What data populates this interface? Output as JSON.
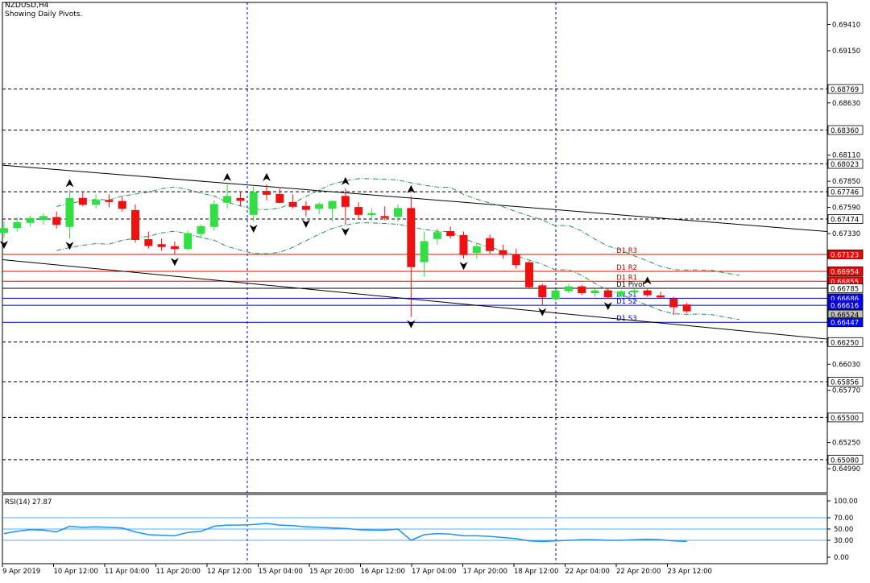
{
  "chart_data": {
    "type": "candlestick",
    "symbol": "NZDUSD,H4",
    "subtitle": "Showing Daily Pivots.",
    "price_ticks": [
      "0.69410",
      "0.69150",
      "0.68630",
      "0.68110",
      "0.67850",
      "0.67590",
      "0.67330",
      "0.66030",
      "0.65770",
      "0.65250",
      "0.64990"
    ],
    "ylim": [
      0.6475,
      0.6963
    ],
    "x_labels": [
      "9 Apr 2019",
      "10 Apr 12:00",
      "11 Apr 04:00",
      "11 Apr 20:00",
      "12 Apr 12:00",
      "15 Apr 04:00",
      "15 Apr 20:00",
      "16 Apr 12:00",
      "17 Apr 04:00",
      "17 Apr 20:00",
      "18 Apr 12:00",
      "22 Apr 04:00",
      "22 Apr 20:00",
      "23 Apr 12:00"
    ],
    "candles": [
      {
        "o": 0.6734,
        "h": 0.6745,
        "l": 0.6729,
        "c": 0.6738
      },
      {
        "o": 0.6739,
        "h": 0.6749,
        "l": 0.6735,
        "c": 0.6744
      },
      {
        "o": 0.6744,
        "h": 0.6751,
        "l": 0.674,
        "c": 0.6748
      },
      {
        "o": 0.6747,
        "h": 0.6753,
        "l": 0.6742,
        "c": 0.675
      },
      {
        "o": 0.6749,
        "h": 0.6755,
        "l": 0.6738,
        "c": 0.6742
      },
      {
        "o": 0.674,
        "h": 0.6776,
        "l": 0.6728,
        "c": 0.6768
      },
      {
        "o": 0.6768,
        "h": 0.6775,
        "l": 0.676,
        "c": 0.6762
      },
      {
        "o": 0.6762,
        "h": 0.6772,
        "l": 0.6758,
        "c": 0.6766
      },
      {
        "o": 0.6766,
        "h": 0.6772,
        "l": 0.6759,
        "c": 0.6765
      },
      {
        "o": 0.6765,
        "h": 0.677,
        "l": 0.6755,
        "c": 0.6758
      },
      {
        "o": 0.6756,
        "h": 0.6762,
        "l": 0.6724,
        "c": 0.6727
      },
      {
        "o": 0.6727,
        "h": 0.6735,
        "l": 0.6718,
        "c": 0.6721
      },
      {
        "o": 0.6722,
        "h": 0.6728,
        "l": 0.6716,
        "c": 0.672
      },
      {
        "o": 0.672,
        "h": 0.6725,
        "l": 0.6712,
        "c": 0.6718
      },
      {
        "o": 0.6718,
        "h": 0.6736,
        "l": 0.6716,
        "c": 0.6733
      },
      {
        "o": 0.6733,
        "h": 0.6742,
        "l": 0.6728,
        "c": 0.674
      },
      {
        "o": 0.674,
        "h": 0.6766,
        "l": 0.6736,
        "c": 0.6762
      },
      {
        "o": 0.6764,
        "h": 0.6782,
        "l": 0.6758,
        "c": 0.677
      },
      {
        "o": 0.6768,
        "h": 0.6775,
        "l": 0.676,
        "c": 0.6766
      },
      {
        "o": 0.6752,
        "h": 0.678,
        "l": 0.6745,
        "c": 0.6774
      },
      {
        "o": 0.6775,
        "h": 0.6782,
        "l": 0.6766,
        "c": 0.6772
      },
      {
        "o": 0.6772,
        "h": 0.6778,
        "l": 0.6763,
        "c": 0.6764
      },
      {
        "o": 0.6764,
        "h": 0.6772,
        "l": 0.6758,
        "c": 0.676
      },
      {
        "o": 0.676,
        "h": 0.6765,
        "l": 0.675,
        "c": 0.6757
      },
      {
        "o": 0.6758,
        "h": 0.6764,
        "l": 0.6752,
        "c": 0.6762
      },
      {
        "o": 0.6758,
        "h": 0.6766,
        "l": 0.6745,
        "c": 0.6765
      },
      {
        "o": 0.677,
        "h": 0.6778,
        "l": 0.6742,
        "c": 0.676
      },
      {
        "o": 0.6759,
        "h": 0.6764,
        "l": 0.6748,
        "c": 0.6752
      },
      {
        "o": 0.6752,
        "h": 0.6758,
        "l": 0.6746,
        "c": 0.6753
      },
      {
        "o": 0.675,
        "h": 0.676,
        "l": 0.6746,
        "c": 0.6749
      },
      {
        "o": 0.675,
        "h": 0.6762,
        "l": 0.6745,
        "c": 0.6758
      },
      {
        "o": 0.6758,
        "h": 0.677,
        "l": 0.665,
        "c": 0.67
      },
      {
        "o": 0.6705,
        "h": 0.6735,
        "l": 0.669,
        "c": 0.6725
      },
      {
        "o": 0.6728,
        "h": 0.6738,
        "l": 0.6722,
        "c": 0.6734
      },
      {
        "o": 0.6735,
        "h": 0.674,
        "l": 0.6728,
        "c": 0.6731
      },
      {
        "o": 0.6731,
        "h": 0.6735,
        "l": 0.6708,
        "c": 0.6712
      },
      {
        "o": 0.6714,
        "h": 0.6724,
        "l": 0.6708,
        "c": 0.672
      },
      {
        "o": 0.6728,
        "h": 0.6732,
        "l": 0.6713,
        "c": 0.6716
      },
      {
        "o": 0.6716,
        "h": 0.6722,
        "l": 0.6708,
        "c": 0.6712
      },
      {
        "o": 0.6712,
        "h": 0.6718,
        "l": 0.6698,
        "c": 0.6702
      },
      {
        "o": 0.6704,
        "h": 0.6706,
        "l": 0.6678,
        "c": 0.668
      },
      {
        "o": 0.6681,
        "h": 0.6683,
        "l": 0.6662,
        "c": 0.667
      },
      {
        "o": 0.6668,
        "h": 0.6678,
        "l": 0.6666,
        "c": 0.6676
      },
      {
        "o": 0.6676,
        "h": 0.6683,
        "l": 0.6674,
        "c": 0.668
      },
      {
        "o": 0.668,
        "h": 0.6682,
        "l": 0.6672,
        "c": 0.6674
      },
      {
        "o": 0.6674,
        "h": 0.6678,
        "l": 0.667,
        "c": 0.6676
      },
      {
        "o": 0.6676,
        "h": 0.6678,
        "l": 0.6668,
        "c": 0.667
      },
      {
        "o": 0.6672,
        "h": 0.6677,
        "l": 0.6668,
        "c": 0.6675
      },
      {
        "o": 0.6675,
        "h": 0.6678,
        "l": 0.6672,
        "c": 0.6676
      },
      {
        "o": 0.6676,
        "h": 0.6679,
        "l": 0.667,
        "c": 0.6672
      },
      {
        "o": 0.6671,
        "h": 0.6675,
        "l": 0.6668,
        "c": 0.667
      },
      {
        "o": 0.6668,
        "h": 0.667,
        "l": 0.6652,
        "c": 0.666
      },
      {
        "o": 0.6662,
        "h": 0.6664,
        "l": 0.6654,
        "c": 0.6656
      }
    ],
    "level_labels": [
      {
        "label": "0.68769",
        "price": 0.68769,
        "style": "dash",
        "color": "#000000",
        "tag": "#ffffff"
      },
      {
        "label": "0.68360",
        "price": 0.6836,
        "style": "dash",
        "color": "#000000",
        "tag": "#ffffff"
      },
      {
        "label": "0.68023",
        "price": 0.68023,
        "style": "dash",
        "color": "#000000",
        "tag": "#ffffff"
      },
      {
        "label": "0.67746",
        "price": 0.67746,
        "style": "dash",
        "color": "#000000",
        "tag": "#ffffff"
      },
      {
        "label": "0.67474",
        "price": 0.67474,
        "style": "dash",
        "color": "#000000",
        "tag": "#ffffff"
      },
      {
        "label": "0.67123",
        "price": 0.67123,
        "style": "solid",
        "color": "#ff0000",
        "tag": "#ff0000"
      },
      {
        "label": "0.66954",
        "price": 0.66954,
        "style": "solid",
        "color": "#ff0000",
        "tag": "#ff0000"
      },
      {
        "label": "0.66855",
        "price": 0.66855,
        "style": "solid",
        "color": "#ff0000",
        "tag": "#ff0000"
      },
      {
        "label": "0.66785",
        "price": 0.66785,
        "style": "solid",
        "color": "#000000",
        "tag": "#ffffff"
      },
      {
        "label": "0.66686",
        "price": 0.66686,
        "style": "solid",
        "color": "#0000cc",
        "tag": "#0000ff"
      },
      {
        "label": "0.66616",
        "price": 0.66616,
        "style": "solid",
        "color": "#0000cc",
        "tag": "#0000ff"
      },
      {
        "label": "0.66524",
        "price": 0.66524,
        "style": "none",
        "color": "#808080",
        "tag": "#c0c0c0"
      },
      {
        "label": "0.66447",
        "price": 0.66447,
        "style": "solid",
        "color": "#0000cc",
        "tag": "#0000ff"
      },
      {
        "label": "0.66250",
        "price": 0.6625,
        "style": "dash",
        "color": "#000000",
        "tag": "#ffffff"
      },
      {
        "label": "0.65856",
        "price": 0.65856,
        "style": "dash",
        "color": "#000000",
        "tag": "#ffffff"
      },
      {
        "label": "0.65500",
        "price": 0.655,
        "style": "dash",
        "color": "#000000",
        "tag": "#ffffff"
      },
      {
        "label": "0.65080",
        "price": 0.6508,
        "style": "dash",
        "color": "#000000",
        "tag": "#ffffff"
      }
    ],
    "pivot_labels": [
      {
        "label": "D1 R3",
        "price": 0.67123,
        "color": "#cc0000"
      },
      {
        "label": "D1 R2",
        "price": 0.66954,
        "color": "#cc0000"
      },
      {
        "label": "D1 R1",
        "price": 0.66855,
        "color": "#cc0000"
      },
      {
        "label": "D1 Pivot",
        "price": 0.66785,
        "color": "#000000"
      },
      {
        "label": "D1 S1",
        "price": 0.66686,
        "color": "#0000cc"
      },
      {
        "label": "D1 S2",
        "price": 0.66616,
        "color": "#0000cc"
      },
      {
        "label": "D1 S3",
        "price": 0.66447,
        "color": "#0000cc"
      }
    ],
    "trendlines": [
      {
        "from": [
          0,
          0.6801
        ],
        "to": [
          1,
          0.6735
        ]
      },
      {
        "from": [
          0,
          0.6707
        ],
        "to": [
          1,
          0.6628
        ]
      }
    ],
    "fractals": [
      {
        "i": 0,
        "dir": "down"
      },
      {
        "i": 5,
        "dir": "up"
      },
      {
        "i": 5,
        "dir": "down"
      },
      {
        "i": 13,
        "dir": "down"
      },
      {
        "i": 17,
        "dir": "up"
      },
      {
        "i": 20,
        "dir": "up"
      },
      {
        "i": 19,
        "dir": "down"
      },
      {
        "i": 23,
        "dir": "down"
      },
      {
        "i": 26,
        "dir": "up"
      },
      {
        "i": 26,
        "dir": "down"
      },
      {
        "i": 31,
        "dir": "up"
      },
      {
        "i": 31,
        "dir": "down"
      },
      {
        "i": 35,
        "dir": "down"
      },
      {
        "i": 41,
        "dir": "down"
      },
      {
        "i": 46,
        "dir": "down"
      },
      {
        "i": 49,
        "dir": "up"
      }
    ],
    "rsi": {
      "title": "RSI(14) 27.87",
      "ticks": [
        "100.00",
        "70.00",
        "50.00",
        "30.00",
        "0.00"
      ],
      "levels": [
        70,
        50,
        30
      ],
      "values": [
        42,
        46,
        49,
        48,
        45,
        55,
        53,
        54,
        53,
        52,
        45,
        40,
        39,
        38,
        44,
        46,
        55,
        57,
        57,
        58,
        60,
        57,
        56,
        54,
        53,
        52,
        51,
        49,
        48,
        48,
        50,
        30,
        40,
        42,
        41,
        38,
        38,
        37,
        35,
        33,
        29,
        28,
        29,
        30,
        31,
        31,
        30,
        30,
        31,
        32,
        31,
        29,
        28
      ]
    }
  }
}
